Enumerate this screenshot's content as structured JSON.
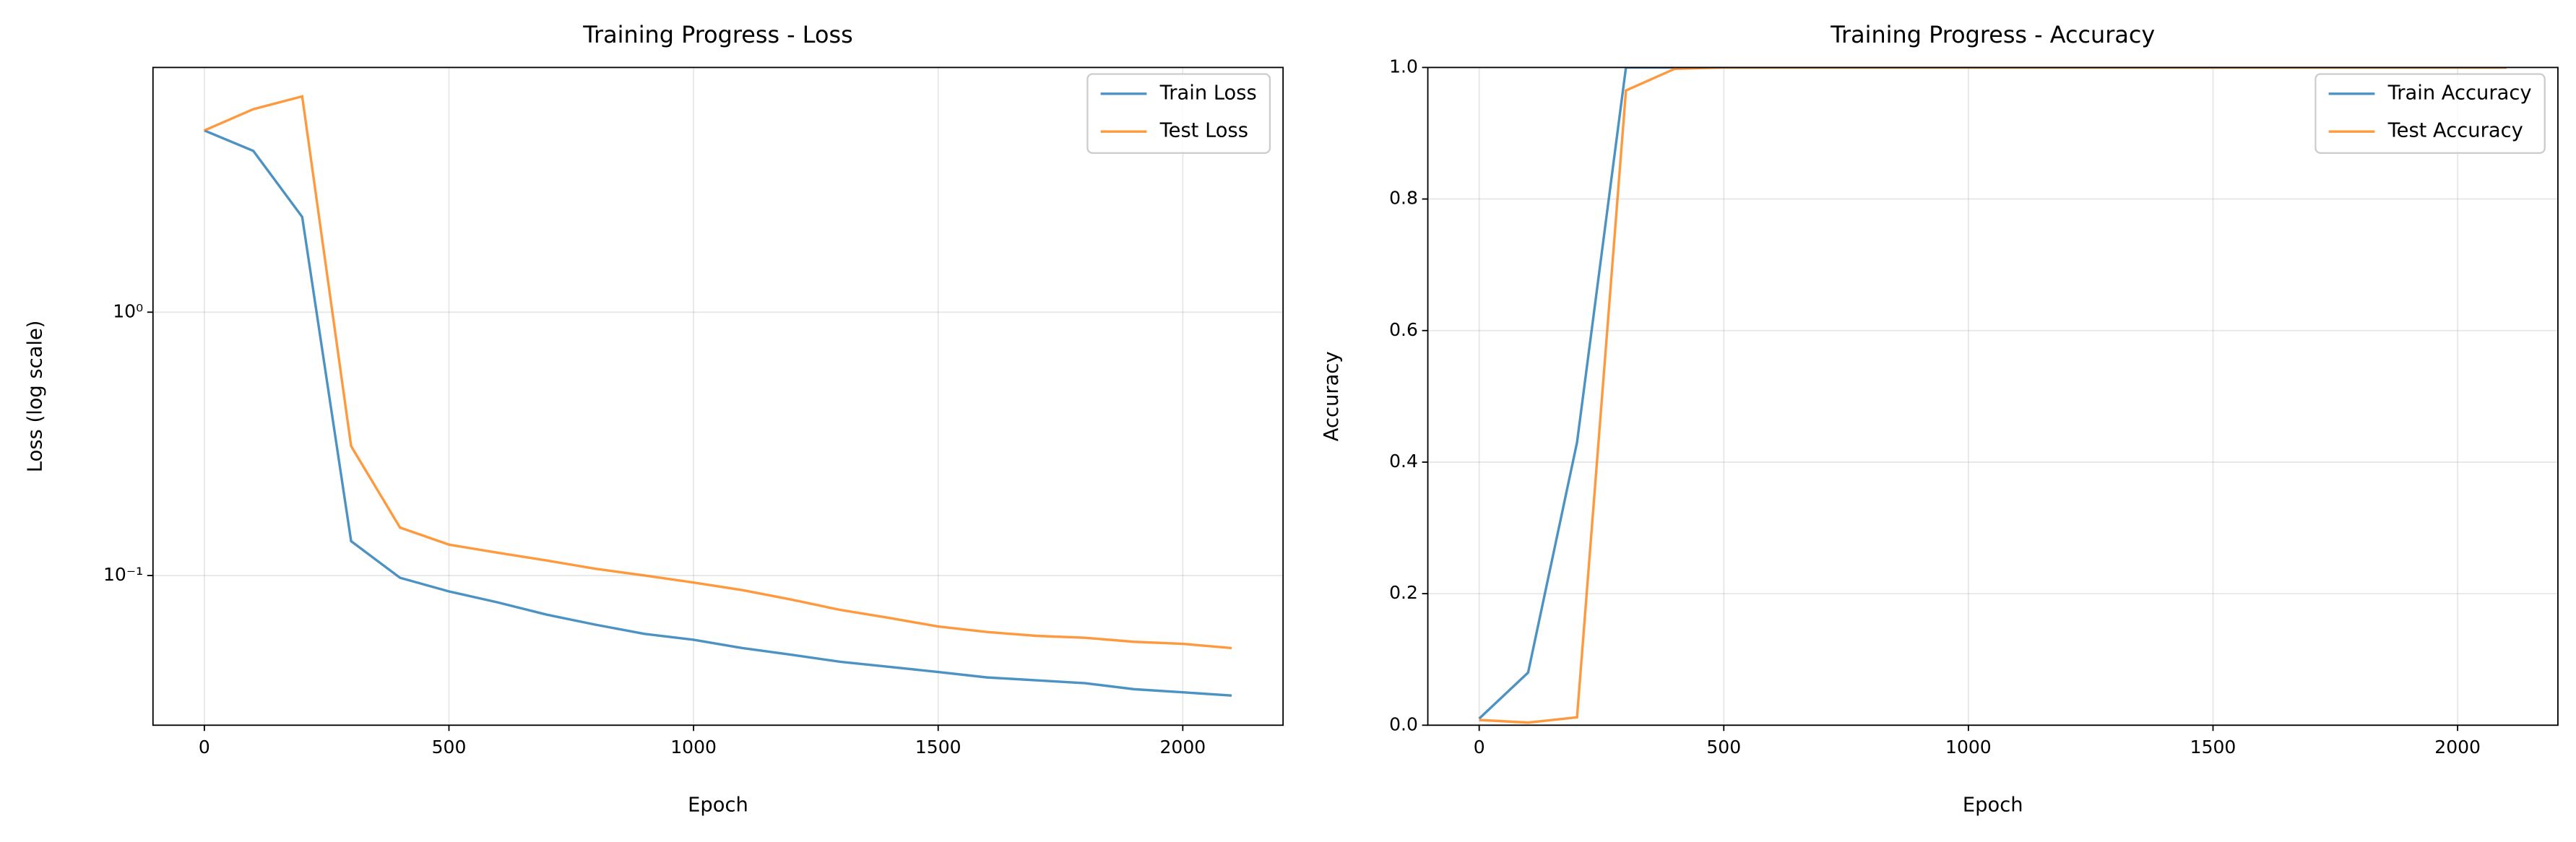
{
  "chart_data": [
    {
      "type": "line",
      "title": "Training Progress - Loss",
      "xlabel": "Epoch",
      "ylabel": "Loss (log scale)",
      "x": [
        0,
        100,
        200,
        300,
        400,
        500,
        600,
        700,
        800,
        900,
        1000,
        1100,
        1200,
        1300,
        1400,
        1500,
        1600,
        1700,
        1800,
        1900,
        2000,
        2100
      ],
      "series": [
        {
          "name": "Train Loss",
          "color": "#1f77b4",
          "values": [
            4.9,
            4.1,
            2.3,
            0.135,
            0.098,
            0.087,
            0.079,
            0.071,
            0.065,
            0.06,
            0.057,
            0.053,
            0.05,
            0.047,
            0.045,
            0.043,
            0.041,
            0.04,
            0.039,
            0.037,
            0.036,
            0.035
          ]
        },
        {
          "name": "Test Loss",
          "color": "#ff7f0e",
          "values": [
            4.9,
            5.9,
            6.6,
            0.31,
            0.152,
            0.131,
            0.122,
            0.114,
            0.106,
            0.1,
            0.094,
            0.088,
            0.081,
            0.074,
            0.069,
            0.064,
            0.061,
            0.059,
            0.058,
            0.056,
            0.055,
            0.053
          ]
        }
      ],
      "xlim": [
        -105,
        2205
      ],
      "ylim": [
        0.027,
        8.5
      ],
      "yscale": "log",
      "xticks": [
        0,
        500,
        1000,
        1500,
        2000
      ],
      "yticks": [
        {
          "value": 1,
          "label": "10⁰"
        },
        {
          "value": 0.1,
          "label": "10⁻¹"
        }
      ],
      "grid": true,
      "legend": "upper right"
    },
    {
      "type": "line",
      "title": "Training Progress - Accuracy",
      "xlabel": "Epoch",
      "ylabel": "Accuracy",
      "x": [
        0,
        100,
        200,
        300,
        400,
        500,
        600,
        700,
        800,
        900,
        1000,
        1100,
        1200,
        1300,
        1400,
        1500,
        1600,
        1700,
        1800,
        1900,
        2000,
        2100
      ],
      "series": [
        {
          "name": "Train Accuracy",
          "color": "#1f77b4",
          "values": [
            0.01,
            0.08,
            0.43,
            1.0,
            1.0,
            1.0,
            1.0,
            1.0,
            1.0,
            1.0,
            1.0,
            1.0,
            1.0,
            1.0,
            1.0,
            1.0,
            1.0,
            1.0,
            1.0,
            1.0,
            1.0,
            1.0
          ]
        },
        {
          "name": "Test Accuracy",
          "color": "#ff7f0e",
          "values": [
            0.008,
            0.004,
            0.012,
            0.965,
            0.998,
            1.0,
            1.0,
            1.0,
            1.0,
            1.0,
            1.0,
            1.0,
            1.0,
            1.0,
            1.0,
            1.0,
            1.0,
            1.0,
            1.0,
            1.0,
            1.0,
            1.0
          ]
        }
      ],
      "xlim": [
        -105,
        2205
      ],
      "ylim": [
        0,
        1
      ],
      "xticks": [
        0,
        500,
        1000,
        1500,
        2000
      ],
      "yticks": [
        {
          "value": 0,
          "label": "0.0"
        },
        0.2,
        0.4,
        0.6,
        0.8,
        {
          "value": 1,
          "label": "1.0"
        }
      ],
      "grid": true,
      "legend": "upper right"
    }
  ]
}
